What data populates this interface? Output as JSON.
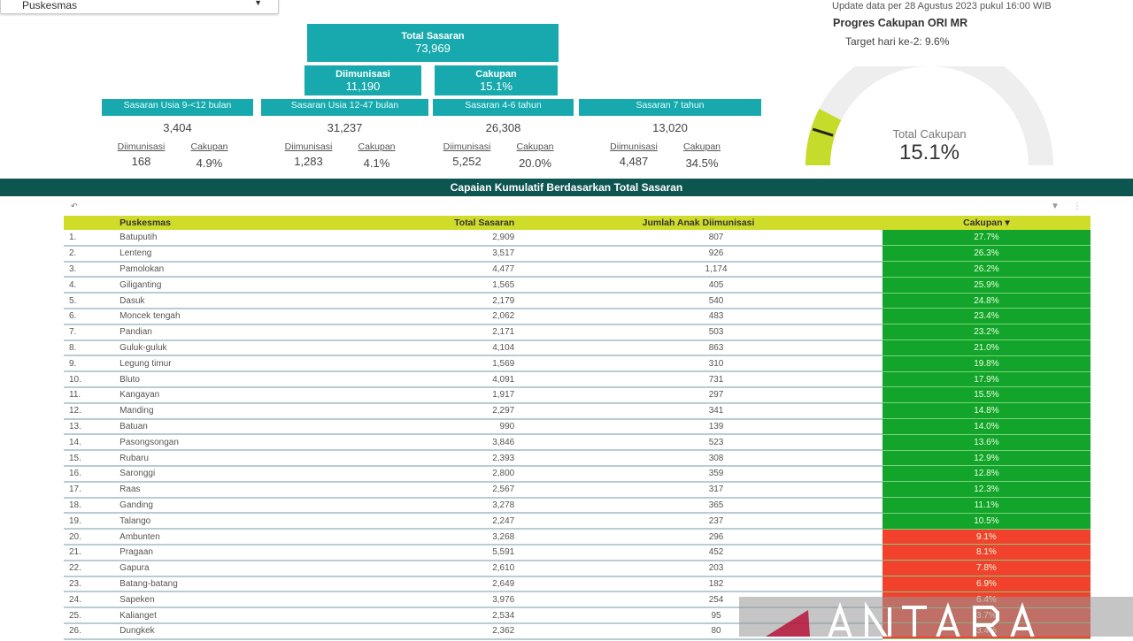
{
  "filter": {
    "label": "Puskesmas"
  },
  "update_text": "Update data per 28 Agustus 2023 pukul 16:00 WIB",
  "summary": {
    "total_sasaran": {
      "label": "Total Sasaran",
      "value": "73,969"
    },
    "diimunisasi": {
      "label": "Diimunisasi",
      "value": "11,190"
    },
    "cakupan": {
      "label": "Cakupan",
      "value": "15.1%"
    }
  },
  "categories": [
    {
      "label": "Sasaran Usia 9-<12 bulan",
      "value": "3,404",
      "diimunisasi": "168",
      "cakupan": "4.9%"
    },
    {
      "label": "Sasaran Usia 12-47 bulan",
      "value": "31,237",
      "diimunisasi": "1,283",
      "cakupan": "4.1%"
    },
    {
      "label": "Sasaran 4-6 tahun",
      "value": "26,308",
      "diimunisasi": "5,252",
      "cakupan": "20.0%"
    },
    {
      "label": "Sasaran 7 tahun",
      "value": "13,020",
      "diimunisasi": "4,487",
      "cakupan": "34.5%"
    }
  ],
  "sub_labels": {
    "diimunisasi": "Diimunisasi",
    "cakupan": "Cakupan"
  },
  "progress": {
    "title": "Progres Cakupan ORI MR",
    "target": "Target hari ke-2: 9.6%",
    "target_value": 9.6,
    "gauge_label": "Total Cakupan",
    "gauge_value_text": "15.1%",
    "gauge_value": 15.1,
    "gauge_max": 100,
    "fill_color": "#c6dc2a",
    "track_color": "#eeeeee"
  },
  "banner": "Capaian Kumulatif Berdasarkan Total Sasaran",
  "table": {
    "headers": [
      "",
      "Puskesmas",
      "Total Sasaran",
      "Jumlah Anak Diimunisasi",
      "Cakupan ▾"
    ],
    "colors": {
      "above_target": "#13a52b",
      "below_target": "#f2412c",
      "header": "#cfdc2a"
    },
    "rows": [
      [
        "1.",
        "Batuputih",
        "2,909",
        "807",
        "27.7%"
      ],
      [
        "2.",
        "Lenteng",
        "3,517",
        "926",
        "26.3%"
      ],
      [
        "3.",
        "Pamolokan",
        "4,477",
        "1,174",
        "26.2%"
      ],
      [
        "4.",
        "Giliganting",
        "1,565",
        "405",
        "25.9%"
      ],
      [
        "5.",
        "Dasuk",
        "2,179",
        "540",
        "24.8%"
      ],
      [
        "6.",
        "Moncek tengah",
        "2,062",
        "483",
        "23.4%"
      ],
      [
        "7.",
        "Pandian",
        "2,171",
        "503",
        "23.2%"
      ],
      [
        "8.",
        "Guluk-guluk",
        "4,104",
        "863",
        "21.0%"
      ],
      [
        "9.",
        "Legung timur",
        "1,569",
        "310",
        "19.8%"
      ],
      [
        "10.",
        "Bluto",
        "4,091",
        "731",
        "17.9%"
      ],
      [
        "11.",
        "Kangayan",
        "1,917",
        "297",
        "15.5%"
      ],
      [
        "12.",
        "Manding",
        "2,297",
        "341",
        "14.8%"
      ],
      [
        "13.",
        "Batuan",
        "990",
        "139",
        "14.0%"
      ],
      [
        "14.",
        "Pasongsongan",
        "3,846",
        "523",
        "13.6%"
      ],
      [
        "15.",
        "Rubaru",
        "2,393",
        "308",
        "12.9%"
      ],
      [
        "16.",
        "Saronggi",
        "2,800",
        "359",
        "12.8%"
      ],
      [
        "17.",
        "Raas",
        "2,567",
        "317",
        "12.3%"
      ],
      [
        "18.",
        "Ganding",
        "3,278",
        "365",
        "11.1%"
      ],
      [
        "19.",
        "Talango",
        "2,247",
        "237",
        "10.5%"
      ],
      [
        "20.",
        "Ambunten",
        "3,268",
        "296",
        "9.1%"
      ],
      [
        "21.",
        "Pragaan",
        "5,591",
        "452",
        "8.1%"
      ],
      [
        "22.",
        "Gapura",
        "2,610",
        "203",
        "7.8%"
      ],
      [
        "23.",
        "Batang-batang",
        "2,649",
        "182",
        "6.9%"
      ],
      [
        "24.",
        "Sapeken",
        "3,976",
        "254",
        "6.4%"
      ],
      [
        "25.",
        "Kalianget",
        "2,534",
        "95",
        "3.7%"
      ],
      [
        "26.",
        "Dungkek",
        "2,362",
        "80",
        "3.4%"
      ]
    ]
  },
  "watermark": "ANTARA"
}
